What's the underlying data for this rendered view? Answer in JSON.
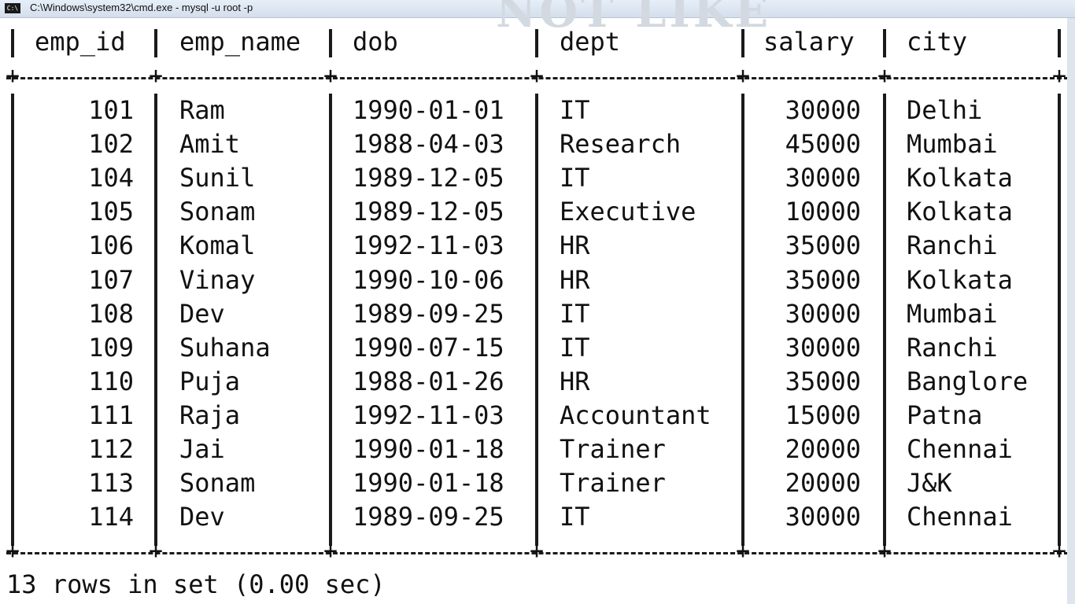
{
  "window": {
    "title": "C:\\Windows\\system32\\cmd.exe - mysql  -u root -p",
    "icon_label": "C:\\",
    "overlay_text": "NOT LIKE"
  },
  "table": {
    "columns": [
      "emp_id",
      "emp_name",
      "dob",
      "dept",
      "salary",
      "city"
    ],
    "rows": [
      [
        "101",
        "Ram",
        "1990-01-01",
        "IT",
        "30000",
        "Delhi"
      ],
      [
        "102",
        "Amit",
        "1988-04-03",
        "Research",
        "45000",
        "Mumbai"
      ],
      [
        "104",
        "Sunil",
        "1989-12-05",
        "IT",
        "30000",
        "Kolkata"
      ],
      [
        "105",
        "Sonam",
        "1989-12-05",
        "Executive",
        "10000",
        "Kolkata"
      ],
      [
        "106",
        "Komal",
        "1992-11-03",
        "HR",
        "35000",
        "Ranchi"
      ],
      [
        "107",
        "Vinay",
        "1990-10-06",
        "HR",
        "35000",
        "Kolkata"
      ],
      [
        "108",
        "Dev",
        "1989-09-25",
        "IT",
        "30000",
        "Mumbai"
      ],
      [
        "109",
        "Suhana",
        "1990-07-15",
        "IT",
        "30000",
        "Ranchi"
      ],
      [
        "110",
        "Puja",
        "1988-01-26",
        "HR",
        "35000",
        "Banglore"
      ],
      [
        "111",
        "Raja",
        "1992-11-03",
        "Accountant",
        "15000",
        "Patna"
      ],
      [
        "112",
        "Jai",
        "1990-01-18",
        "Trainer",
        "20000",
        "Chennai"
      ],
      [
        "113",
        "Sonam",
        "1990-01-18",
        "Trainer",
        "20000",
        "J&K"
      ],
      [
        "114",
        "Dev",
        "1989-09-25",
        "IT",
        "30000",
        "Chennai"
      ]
    ]
  },
  "footer": {
    "status": "13 rows in set (0.00 sec)"
  }
}
